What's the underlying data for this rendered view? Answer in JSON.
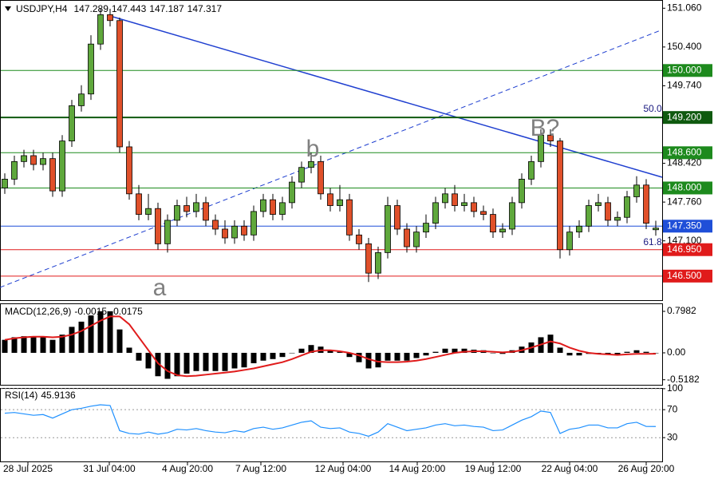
{
  "chart_data": [
    {
      "type": "candlestick",
      "title": "USDJPY,H4",
      "open": [
        148.0,
        148.15,
        148.45,
        148.55,
        148.4,
        148.5,
        147.95,
        148.8,
        149.4,
        149.6,
        150.45,
        150.95,
        150.85,
        148.7,
        147.9,
        147.55,
        147.65,
        147.05,
        147.45,
        147.7,
        147.6,
        147.75,
        147.45,
        147.3,
        147.15,
        147.35,
        147.2,
        147.6,
        147.8,
        147.55,
        147.75,
        148.1,
        148.35,
        148.45,
        147.9,
        147.7,
        147.8,
        147.2,
        147.05,
        146.55,
        146.9,
        147.7,
        147.3,
        147.0,
        147.25,
        147.4,
        147.75,
        147.9,
        147.7,
        147.75,
        147.6,
        147.55,
        147.25,
        147.3,
        147.75,
        148.15,
        148.45,
        148.9,
        148.8,
        146.95,
        147.25,
        147.35,
        147.7,
        147.75,
        147.45,
        147.5,
        147.85,
        148.05,
        147.289
      ],
      "high": [
        148.25,
        148.55,
        148.65,
        148.65,
        148.6,
        148.6,
        148.9,
        149.5,
        149.75,
        150.6,
        151.05,
        151.05,
        150.9,
        148.8,
        148.05,
        147.9,
        147.75,
        147.55,
        147.8,
        147.85,
        147.9,
        147.85,
        147.55,
        147.45,
        147.45,
        147.45,
        147.7,
        147.9,
        147.9,
        147.85,
        148.2,
        148.45,
        148.6,
        148.55,
        148.0,
        148.05,
        147.9,
        147.3,
        147.15,
        147.0,
        147.85,
        147.8,
        147.4,
        147.35,
        147.55,
        147.85,
        148.0,
        148.05,
        147.9,
        147.85,
        147.7,
        147.65,
        147.4,
        147.85,
        148.25,
        148.55,
        149.0,
        149.0,
        148.85,
        147.35,
        147.45,
        147.8,
        147.9,
        147.85,
        147.6,
        147.95,
        148.2,
        148.15,
        147.443
      ],
      "low": [
        147.9,
        148.05,
        148.35,
        148.3,
        148.3,
        147.85,
        147.85,
        148.7,
        149.3,
        149.5,
        150.35,
        150.75,
        148.6,
        147.8,
        147.45,
        147.45,
        146.95,
        146.9,
        147.35,
        147.5,
        147.5,
        147.35,
        147.2,
        147.05,
        147.05,
        147.1,
        147.1,
        147.5,
        147.45,
        147.45,
        147.65,
        148.0,
        148.25,
        147.8,
        147.6,
        147.6,
        147.1,
        146.95,
        146.4,
        146.45,
        146.8,
        147.2,
        146.9,
        146.9,
        147.15,
        147.3,
        147.65,
        147.6,
        147.6,
        147.5,
        147.45,
        147.15,
        147.15,
        147.2,
        147.65,
        148.05,
        148.35,
        148.7,
        146.8,
        146.85,
        147.15,
        147.25,
        147.6,
        147.35,
        147.35,
        147.4,
        147.75,
        147.3,
        147.187
      ],
      "close": [
        148.15,
        148.45,
        148.55,
        148.4,
        148.5,
        147.95,
        148.8,
        149.4,
        149.6,
        150.45,
        150.95,
        150.85,
        148.7,
        147.9,
        147.55,
        147.65,
        147.05,
        147.45,
        147.7,
        147.6,
        147.75,
        147.45,
        147.3,
        147.15,
        147.35,
        147.2,
        147.6,
        147.8,
        147.55,
        147.75,
        148.1,
        148.35,
        148.45,
        147.9,
        147.7,
        147.8,
        147.2,
        147.05,
        146.55,
        146.9,
        147.7,
        147.3,
        147.0,
        147.25,
        147.4,
        147.75,
        147.9,
        147.7,
        147.75,
        147.6,
        147.55,
        147.25,
        147.3,
        147.75,
        148.15,
        148.45,
        148.9,
        148.8,
        146.95,
        147.25,
        147.35,
        147.7,
        147.75,
        147.45,
        147.5,
        147.85,
        148.05,
        147.4,
        147.317
      ],
      "up_color": "#5fa83c",
      "down_color": "#e0502a",
      "ylim": [
        146.09,
        151.2
      ],
      "yticks": [
        {
          "value": 151.06,
          "label": "151.060"
        },
        {
          "value": 150.4,
          "label": "150.400"
        },
        {
          "value": 149.74,
          "label": "149.740"
        },
        {
          "value": 148.42,
          "label": "148.420"
        },
        {
          "value": 147.76,
          "label": "147.760"
        },
        {
          "value": 147.1,
          "label": "147.100"
        }
      ],
      "levels": [
        {
          "value": 150,
          "label": "150.000",
          "color": "#1d8a1d"
        },
        {
          "value": 149.2,
          "label": "149.200",
          "color": "#0f5a0f"
        },
        {
          "value": 148.6,
          "label": "148.600",
          "color": "#1d8a1d"
        },
        {
          "value": 148,
          "label": "148.000",
          "color": "#1d8a1d"
        },
        {
          "value": 147.35,
          "label": "147.350",
          "color": "#1f4fd8"
        },
        {
          "value": 146.95,
          "label": "146.950",
          "color": "#e01b1b"
        },
        {
          "value": 146.5,
          "label": "146.500",
          "color": "#e01b1b"
        }
      ],
      "annotations": [
        "a",
        "b",
        "B?",
        "50.0",
        "61.8"
      ],
      "x_tick_labels": [
        "28 Jul 2025",
        "31 Jul 04:00",
        "4 Aug 20:00",
        "7 Aug 12:00",
        "12 Aug 04:00",
        "14 Aug 20:00",
        "19 Aug 12:00",
        "22 Aug 04:00",
        "26 Aug 20:00"
      ]
    },
    {
      "type": "macd",
      "title": "MACD(12,26,9)",
      "values": [
        0.25,
        0.3,
        0.32,
        0.3,
        0.3,
        0.25,
        0.35,
        0.5,
        0.6,
        0.72,
        0.8,
        0.8,
        0.45,
        0.1,
        -0.15,
        -0.3,
        -0.45,
        -0.5,
        -0.45,
        -0.4,
        -0.35,
        -0.35,
        -0.35,
        -0.35,
        -0.3,
        -0.28,
        -0.2,
        -0.15,
        -0.12,
        -0.08,
        0.0,
        0.08,
        0.15,
        0.12,
        0.05,
        0.02,
        -0.08,
        -0.18,
        -0.3,
        -0.28,
        -0.15,
        -0.15,
        -0.15,
        -0.1,
        -0.05,
        0.02,
        0.08,
        0.08,
        0.08,
        0.06,
        0.05,
        0.0,
        -0.02,
        0.05,
        0.12,
        0.2,
        0.3,
        0.35,
        0.1,
        -0.05,
        -0.05,
        -0.02,
        0.0,
        -0.02,
        -0.03,
        0.02,
        0.05,
        0.02,
        -0.0015
      ],
      "signal": [
        0.25,
        0.28,
        0.3,
        0.31,
        0.31,
        0.3,
        0.31,
        0.35,
        0.42,
        0.52,
        0.62,
        0.7,
        0.7,
        0.55,
        0.3,
        0.05,
        -0.2,
        -0.35,
        -0.43,
        -0.45,
        -0.44,
        -0.42,
        -0.4,
        -0.38,
        -0.36,
        -0.33,
        -0.3,
        -0.26,
        -0.22,
        -0.18,
        -0.12,
        -0.05,
        0.02,
        0.05,
        0.05,
        0.03,
        0.0,
        -0.05,
        -0.12,
        -0.17,
        -0.18,
        -0.18,
        -0.17,
        -0.15,
        -0.12,
        -0.08,
        -0.04,
        0.0,
        0.02,
        0.03,
        0.03,
        0.02,
        0.01,
        0.02,
        0.05,
        0.1,
        0.16,
        0.22,
        0.18,
        0.1,
        0.04,
        0.0,
        -0.02,
        -0.03,
        -0.04,
        -0.03,
        -0.02,
        -0.02,
        -0.0175
      ],
      "color": "#000000",
      "signal_color": "#e01b1b",
      "ylim": [
        -0.615,
        0.952
      ],
      "yticks": [
        0.7982,
        {
          "value": 0,
          "label": "0.00"
        },
        -0.5182
      ]
    },
    {
      "type": "line",
      "title": "RSI(14)",
      "values": [
        65,
        66,
        64,
        62,
        63,
        58,
        64,
        70,
        72,
        75,
        77,
        76,
        40,
        36,
        35,
        38,
        35,
        37,
        42,
        41,
        43,
        40,
        38,
        37,
        40,
        38,
        43,
        45,
        42,
        44,
        48,
        52,
        54,
        45,
        43,
        44,
        38,
        36,
        32,
        38,
        50,
        45,
        40,
        42,
        44,
        48,
        50,
        47,
        48,
        46,
        45,
        40,
        41,
        48,
        55,
        60,
        68,
        66,
        36,
        42,
        44,
        48,
        48,
        44,
        44,
        50,
        52,
        46,
        45.9136
      ],
      "color": "#1e90ff",
      "ylim": [
        -4,
        101
      ],
      "yticks": [
        100,
        70,
        30
      ]
    }
  ]
}
